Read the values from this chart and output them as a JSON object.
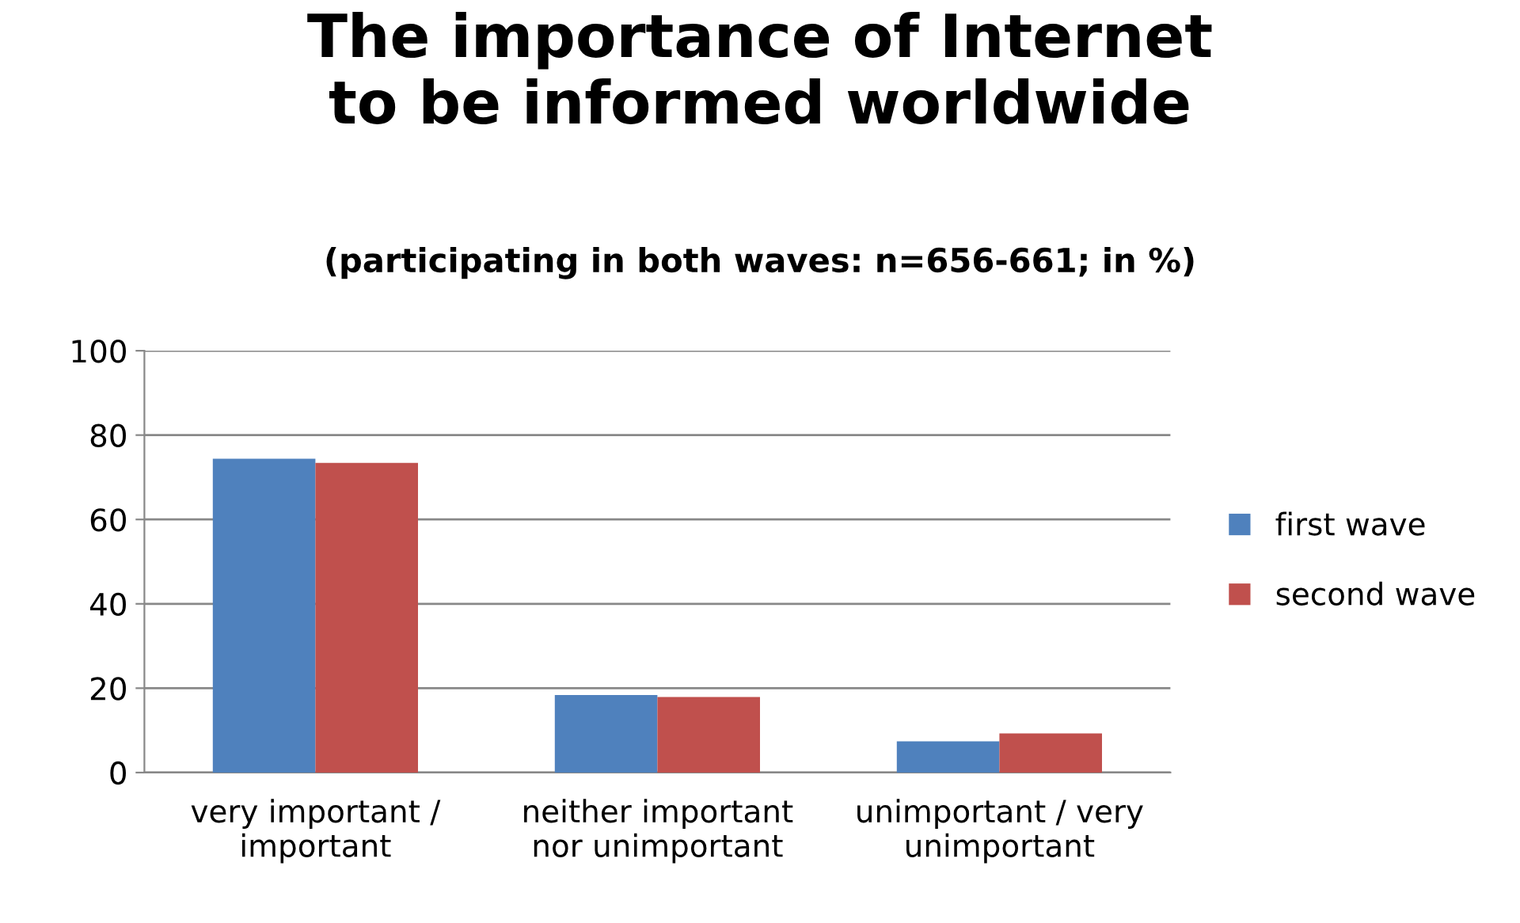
{
  "chart_data": {
    "type": "bar",
    "title": "The importance of Internet\nto be informed worldwide",
    "subtitle": "(participating in both waves: n=656-661; in %)",
    "categories": [
      "very important /\nimportant",
      "neither important\nnor unimportant",
      "unimportant / very\nunimportant"
    ],
    "series": [
      {
        "name": "first wave",
        "color": "#4f81bd",
        "values": [
          74.4,
          18.4,
          7.4
        ]
      },
      {
        "name": "second wave",
        "color": "#c0504d",
        "values": [
          73.4,
          17.9,
          9.3
        ]
      }
    ],
    "ylim": [
      0,
      100
    ],
    "yticks": [
      0,
      20,
      40,
      60,
      80,
      100
    ],
    "grid": "y",
    "legend": "right"
  }
}
